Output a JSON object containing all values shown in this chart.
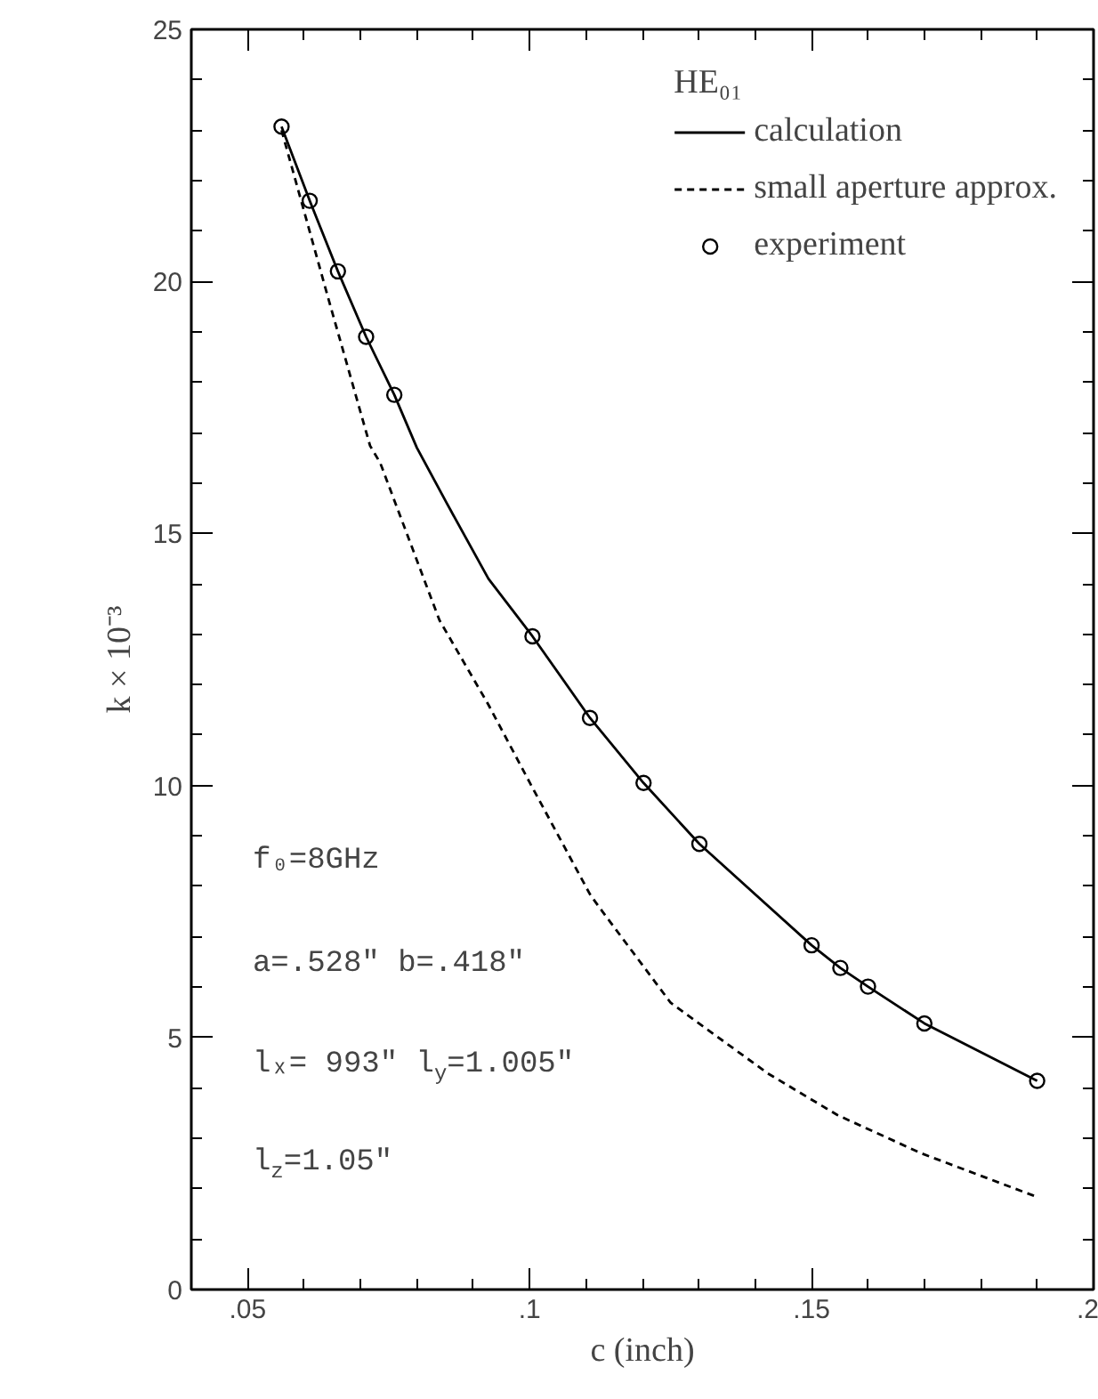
{
  "chart_data": {
    "type": "line",
    "xlabel": "c (inch)",
    "ylabel": "k × 10⁻³",
    "legend_title": "HE₀₁",
    "legend": "top right",
    "grid": false,
    "xlim": [
      0.04,
      0.2
    ],
    "xticks": [
      {
        "value": 0.05,
        "label": ".05"
      },
      {
        "value": 0.1,
        "label": ".1"
      },
      {
        "value": 0.15,
        "label": ".15"
      },
      {
        "value": 0.2,
        "label": ".2"
      }
    ],
    "ylim": [
      0,
      25
    ],
    "yticks": [
      0,
      5,
      10,
      15,
      20,
      25
    ],
    "series": [
      {
        "name": "calculation",
        "line_style": "solid",
        "color": "#000000",
        "x": [
          0.056,
          0.061,
          0.066,
          0.071,
          0.076,
          0.08,
          0.0853,
          0.0927,
          0.1005,
          0.1107,
          0.1202,
          0.1301,
          0.15,
          0.1551,
          0.16,
          0.17,
          0.19
        ],
        "values": [
          23.07,
          21.6,
          20.2,
          18.9,
          17.75,
          16.7,
          15.6,
          14.1,
          12.96,
          11.34,
          10.05,
          8.84,
          6.83,
          6.38,
          6.01,
          5.28,
          4.14
        ]
      },
      {
        "name": "small aperture approx.",
        "line_style": "dashed",
        "color": "#000000",
        "x": [
          0.056,
          0.0642,
          0.0717,
          0.0735,
          0.084,
          0.0927,
          0.1,
          0.1107,
          0.1125,
          0.125,
          0.1422,
          0.1546,
          0.1695,
          0.1899
        ],
        "values": [
          23.0,
          19.7,
          16.74,
          16.4,
          13.28,
          11.6,
          10.06,
          7.84,
          7.56,
          5.69,
          4.29,
          3.46,
          2.7,
          1.84
        ]
      },
      {
        "name": "experiment",
        "type": "scatter",
        "marker": "circle",
        "color": "#000000",
        "x": [
          0.056,
          0.061,
          0.066,
          0.071,
          0.076,
          0.1005,
          0.1107,
          0.1202,
          0.1301,
          0.15,
          0.1551,
          0.16,
          0.17,
          0.19
        ],
        "values": [
          23.07,
          21.6,
          20.2,
          18.9,
          17.75,
          12.96,
          11.34,
          10.05,
          8.84,
          6.83,
          6.38,
          6.01,
          5.28,
          4.14
        ]
      }
    ],
    "annotations": [
      "f₀=8GHz",
      "a=.528″  b=.418″",
      "lₓ= 993″  l$_{y}$=1.005″",
      "l$_{z}$=1.05″"
    ]
  }
}
